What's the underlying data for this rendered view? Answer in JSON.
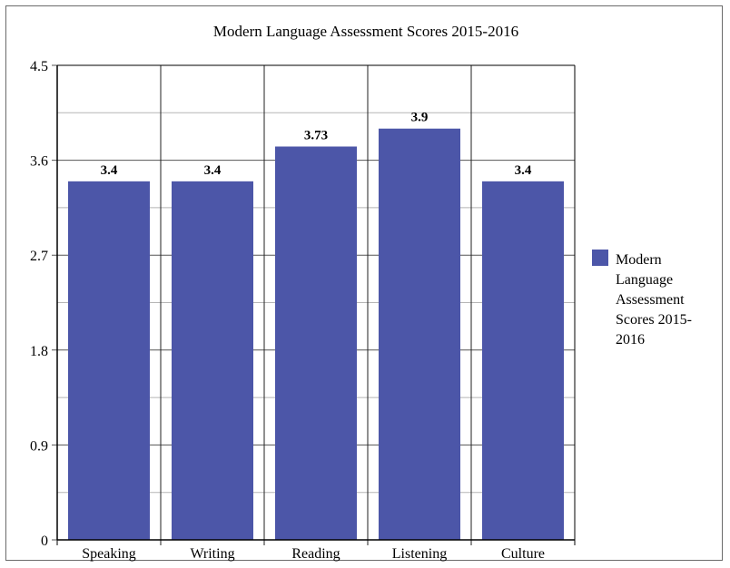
{
  "chart_data": {
    "type": "bar",
    "title": "Modern Language Assessment Scores 2015-2016",
    "categories": [
      "Speaking",
      "Writing",
      "Reading",
      "Listening",
      "Culture"
    ],
    "series": [
      {
        "name": "Modern Language Assessment Scores 2015-2016",
        "values": [
          3.4,
          3.4,
          3.73,
          3.9,
          3.4
        ],
        "value_labels": [
          "3.4",
          "3.4",
          "3.73",
          "3.9",
          "3.4"
        ]
      }
    ],
    "yticks": [
      "0",
      "0.9",
      "1.8",
      "2.7",
      "3.6",
      "4.5"
    ],
    "ylim": [
      0,
      4.5
    ],
    "grid": true,
    "legend_position": "right",
    "bar_color": "#4c56a8",
    "legend_lines": [
      "Modern",
      "Language",
      "Assessment",
      "Scores 2015-",
      "2016"
    ]
  }
}
